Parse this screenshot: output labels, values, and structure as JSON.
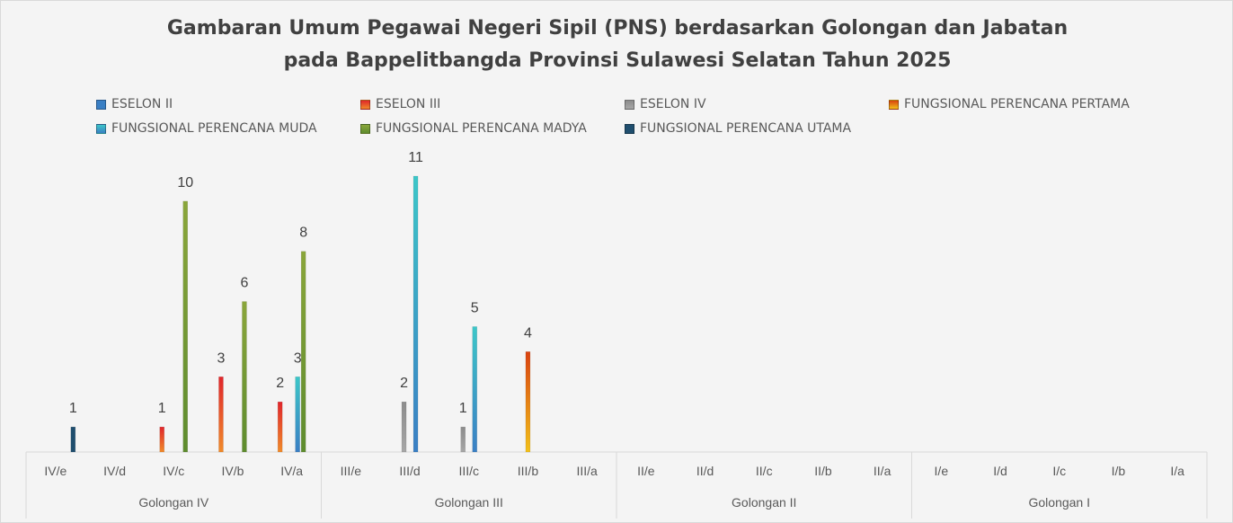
{
  "chart_data": {
    "type": "bar",
    "title": [
      "Gambaran Umum Pegawai Negeri Sipil (PNS) berdasarkan Golongan dan Jabatan",
      "pada Bappelitbangda Provinsi Sulawesi Selatan Tahun 2025"
    ],
    "categories": [
      "IV/e",
      "IV/d",
      "IV/c",
      "IV/b",
      "IV/a",
      "III/e",
      "III/d",
      "III/c",
      "III/b",
      "III/a",
      "II/e",
      "II/d",
      "II/c",
      "II/b",
      "II/a",
      "I/e",
      "I/d",
      "I/c",
      "I/b",
      "I/a"
    ],
    "groups": [
      {
        "label": "Golongan IV",
        "count": 5
      },
      {
        "label": "Golongan III",
        "count": 5
      },
      {
        "label": "Golongan II",
        "count": 5
      },
      {
        "label": "Golongan I",
        "count": 5
      }
    ],
    "ylim": [
      0,
      11
    ],
    "legend_position": "top",
    "series": [
      {
        "name": "ESELON II",
        "color": "#3a7fc4",
        "color2": "#3a7fc4",
        "values": [
          null,
          null,
          null,
          null,
          null,
          null,
          null,
          null,
          null,
          null,
          null,
          null,
          null,
          null,
          null,
          null,
          null,
          null,
          null,
          null
        ]
      },
      {
        "name": "ESELON III",
        "color": "#e0262b",
        "color2": "#f08a2a",
        "values": [
          null,
          null,
          1,
          3,
          2,
          null,
          null,
          null,
          null,
          null,
          null,
          null,
          null,
          null,
          null,
          null,
          null,
          null,
          null,
          null
        ]
      },
      {
        "name": "ESELON IV",
        "color": "#8c8c8c",
        "color2": "#a6a6a6",
        "values": [
          null,
          null,
          null,
          null,
          null,
          null,
          2,
          1,
          null,
          null,
          null,
          null,
          null,
          null,
          null,
          null,
          null,
          null,
          null,
          null
        ]
      },
      {
        "name": "FUNGSIONAL PERENCANA PERTAMA",
        "color": "#d9420f",
        "color2": "#f2c01a",
        "values": [
          null,
          null,
          null,
          null,
          null,
          null,
          null,
          null,
          4,
          null,
          null,
          null,
          null,
          null,
          null,
          null,
          null,
          null,
          null,
          null
        ]
      },
      {
        "name": "FUNGSIONAL PERENCANA MUDA",
        "color": "#3cc6c8",
        "color2": "#3a7fc4",
        "values": [
          null,
          null,
          null,
          null,
          3,
          null,
          11,
          5,
          null,
          null,
          null,
          null,
          null,
          null,
          null,
          null,
          null,
          null,
          null,
          null
        ]
      },
      {
        "name": "FUNGSIONAL PERENCANA MADYA",
        "color": "#8aa63a",
        "color2": "#5e8c2e",
        "values": [
          null,
          null,
          10,
          6,
          8,
          null,
          null,
          null,
          null,
          null,
          null,
          null,
          null,
          null,
          null,
          null,
          null,
          null,
          null,
          null
        ]
      },
      {
        "name": "FUNGSIONAL PERENCANA UTAMA",
        "color": "#1f4e6e",
        "color2": "#1f4e6e",
        "values": [
          1,
          null,
          null,
          null,
          null,
          null,
          null,
          null,
          null,
          null,
          null,
          null,
          null,
          null,
          null,
          null,
          null,
          null,
          null,
          null
        ]
      }
    ]
  }
}
